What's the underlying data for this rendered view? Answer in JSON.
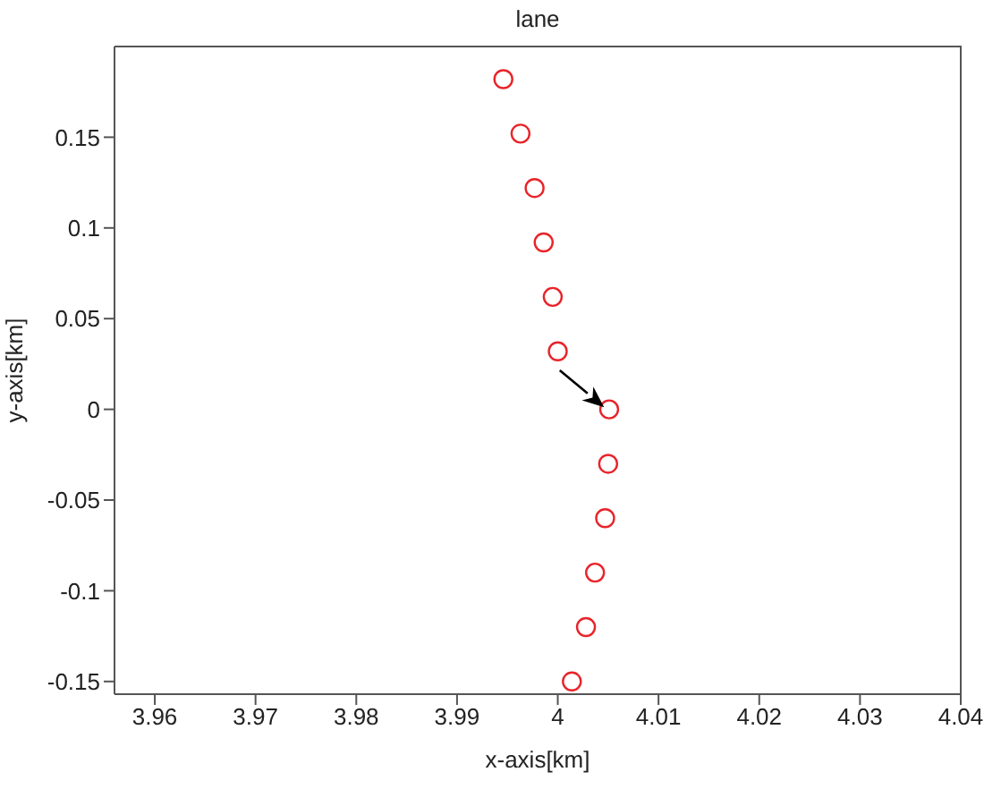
{
  "chart_data": {
    "type": "scatter",
    "title": "lane",
    "xlabel": "x-axis[km]",
    "ylabel": "y-axis[km]",
    "x": [
      3.9946,
      3.9963,
      3.9977,
      3.9986,
      3.9995,
      4.0,
      4.0051,
      4.005,
      4.0047,
      4.0037,
      4.0028,
      4.0014
    ],
    "series": [
      {
        "color": "#e8242a",
        "values": [
          0.182,
          0.152,
          0.122,
          0.092,
          0.062,
          0.032,
          0.0,
          -0.03,
          -0.06,
          -0.09,
          -0.12,
          -0.15
        ]
      }
    ],
    "xlim": [
      3.956,
      4.04
    ],
    "xticks": [
      3.96,
      3.97,
      3.98,
      3.99,
      4,
      4.01,
      4.02,
      4.03,
      4.04
    ],
    "ylim": [
      -0.157,
      0.2
    ],
    "yticks": [
      -0.15,
      -0.1,
      -0.05,
      0,
      0.05,
      0.1,
      0.15
    ],
    "marker": "circle"
  }
}
